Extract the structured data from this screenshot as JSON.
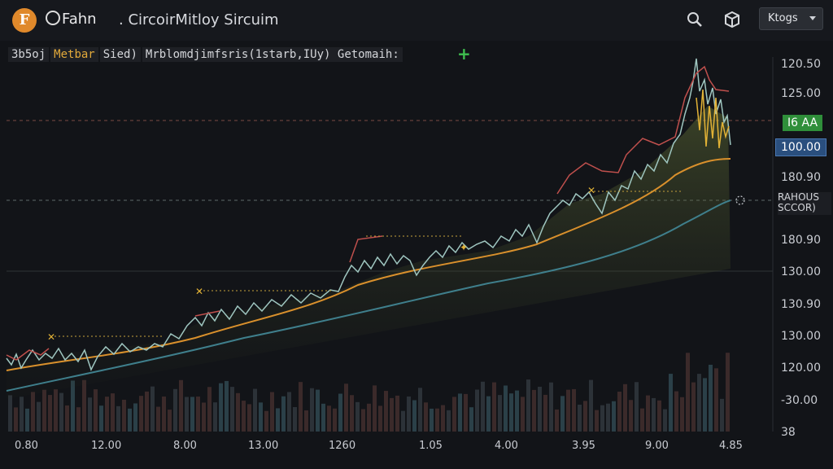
{
  "header": {
    "logo_letter": "F",
    "brand": "Fahn",
    "title": ". CircoirMitloy Sircuim",
    "search_icon": "search-icon",
    "cube_icon": "cube-icon",
    "dropdown_value": "Ktogs"
  },
  "legend": {
    "a": "3b5oj",
    "b": "Metbar",
    "c": "Sied)",
    "d": "Mrblomdjimfsris(1starb,IUy)  Getomaih:"
  },
  "price_tags": {
    "green": "I6 AA",
    "blue": "100.00"
  },
  "note": {
    "line1": "RAHOUS",
    "line2": "SCCOR)"
  },
  "y_axis": [
    "120.50",
    "125.00",
    "180.90",
    "180.90",
    "130.00",
    "130.90",
    "130.00",
    "120.00",
    "-30.00",
    "38"
  ],
  "x_axis": [
    "0.80",
    "12.00",
    "8.00",
    "13.00",
    "1260",
    "1.05",
    "4.00",
    "3.95",
    "9.00",
    "4.85"
  ],
  "colors": {
    "price_line": "#9fc6c0",
    "ma_orange": "#d9902c",
    "ma_teal": "#3f7f8c",
    "peak_red": "#c0504d",
    "gold": "#e2b236",
    "green_tag": "#2f8f3a",
    "blue_tag": "#2a4f7e"
  }
}
